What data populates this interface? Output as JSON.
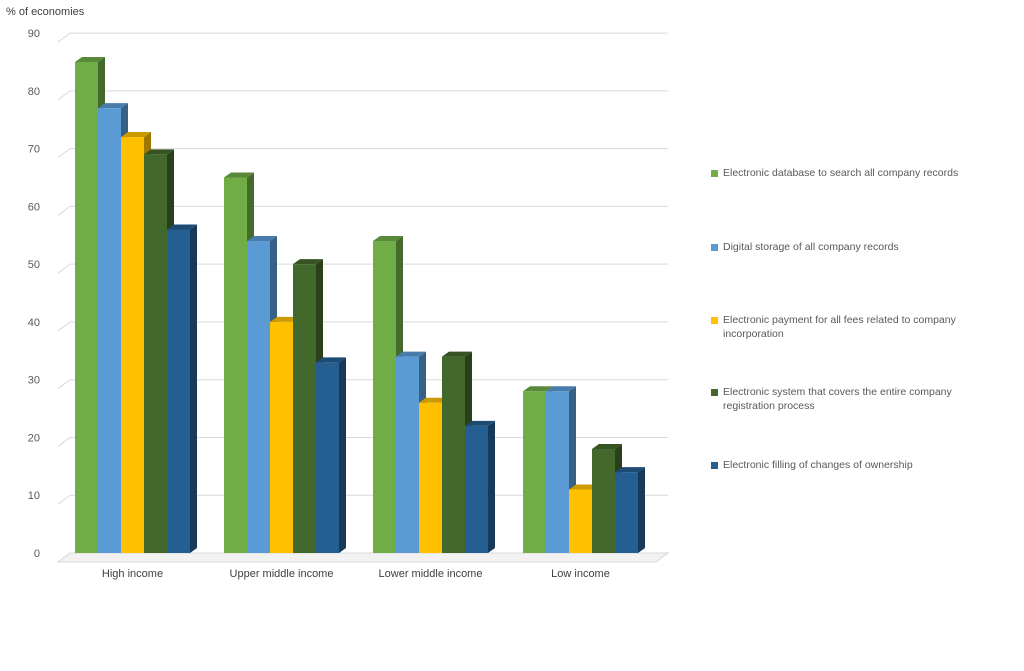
{
  "chart_data": {
    "type": "bar",
    "ylabel": "% of economies",
    "ylim": [
      0,
      90
    ],
    "yticks": [
      0,
      10,
      20,
      30,
      40,
      50,
      60,
      70,
      80,
      90
    ],
    "grid": true,
    "legend_position": "right",
    "categories": [
      "High income",
      "Upper middle income",
      "Lower middle income",
      "Low income"
    ],
    "series": [
      {
        "name": "Electronic database to search all company records",
        "color": "#70ad47",
        "values": [
          85,
          65,
          54,
          28
        ]
      },
      {
        "name": "Digital storage of all company records",
        "color": "#5b9bd5",
        "values": [
          77,
          54,
          34,
          28
        ]
      },
      {
        "name": "Electronic payment for all fees related to company incorporation",
        "color": "#ffc000",
        "values": [
          72,
          40,
          26,
          11
        ]
      },
      {
        "name": "Electronic system that covers the entire company registration process",
        "color": "#43682b",
        "values": [
          69,
          50,
          34,
          18
        ]
      },
      {
        "name": "Electronic filling of changes of ownership",
        "color": "#255e91",
        "values": [
          56,
          33,
          22,
          14
        ]
      }
    ]
  }
}
